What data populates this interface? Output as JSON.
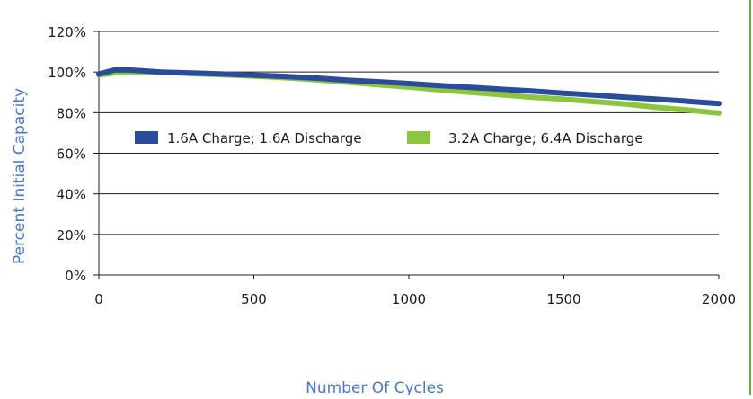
{
  "chart_data": {
    "type": "line",
    "title": "",
    "xlabel": "Number Of Cycles",
    "ylabel": "Percent Initial Capacity",
    "xlim": [
      0,
      2000
    ],
    "ylim": [
      0,
      120
    ],
    "x_ticks": [
      "0",
      "500",
      "1000",
      "1500",
      "2000"
    ],
    "y_ticks": [
      "0%",
      "20%",
      "40%",
      "60%",
      "80%",
      "100%",
      "120%"
    ],
    "grid": true,
    "legend": "inside-center",
    "series": [
      {
        "name": "1.6A Charge; 1.6A Discharge",
        "color": "#2b4c9b",
        "x": [
          0,
          50,
          100,
          150,
          200,
          300,
          400,
          500,
          600,
          700,
          800,
          900,
          1000,
          1100,
          1200,
          1300,
          1400,
          1500,
          1600,
          1700,
          1800,
          1900,
          2000
        ],
        "y": [
          99,
          101,
          101,
          100.5,
          100,
          99.5,
          99,
          98.5,
          97.8,
          97,
          96,
          95.2,
          94.3,
          93.3,
          92.4,
          91.5,
          90.6,
          89.6,
          88.6,
          87.6,
          86.6,
          85.6,
          84.5
        ]
      },
      {
        "name": "3.2A Charge; 6.4A Discharge",
        "color": "#8cc63f",
        "x": [
          0,
          50,
          100,
          150,
          200,
          300,
          400,
          500,
          600,
          700,
          800,
          900,
          1000,
          1100,
          1200,
          1300,
          1400,
          1500,
          1600,
          1700,
          1800,
          1900,
          2000
        ],
        "y": [
          98.5,
          99.5,
          100,
          100,
          100,
          99.2,
          98.6,
          98,
          97.2,
          96.2,
          95,
          93.8,
          92.6,
          91.2,
          90,
          88.8,
          87.6,
          86.6,
          85.4,
          84.2,
          82.6,
          81.3,
          79.8
        ]
      }
    ]
  }
}
